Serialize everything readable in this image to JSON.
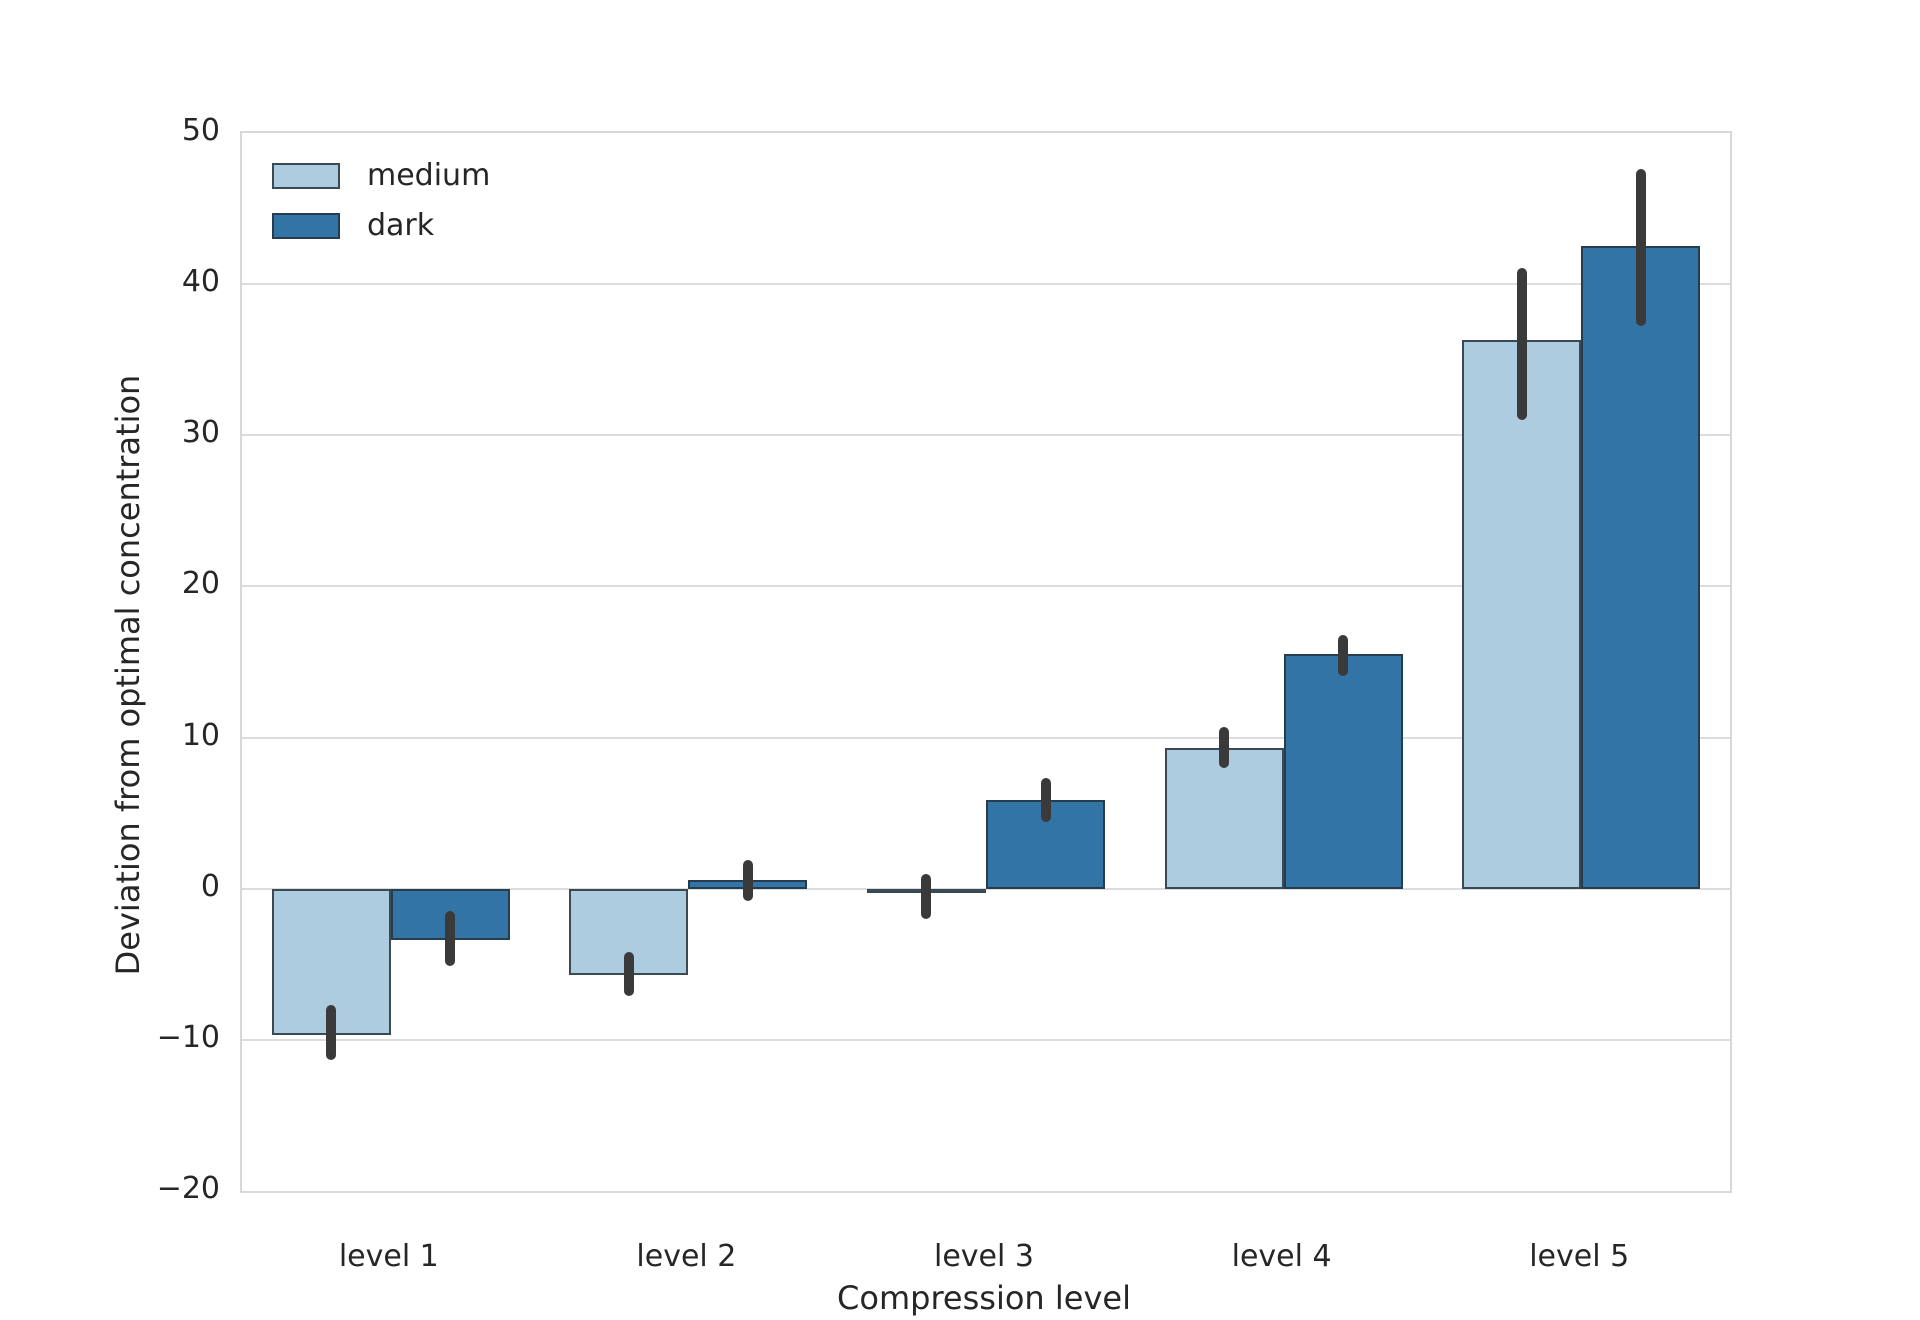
{
  "chart_data": {
    "type": "bar",
    "title": "",
    "xlabel": "Compression level",
    "ylabel": "Deviation from optimal concentration",
    "categories": [
      "level 1",
      "level 2",
      "level 3",
      "level 4",
      "level 5"
    ],
    "series": [
      {
        "name": "medium",
        "color": "#adccdf",
        "values": [
          -9.7,
          -5.7,
          -0.3,
          9.3,
          36.3
        ],
        "ci_low": [
          -11.3,
          -7.1,
          -2.0,
          8.0,
          31.0
        ],
        "ci_high": [
          -7.7,
          -4.2,
          1.0,
          10.7,
          41.1
        ]
      },
      {
        "name": "dark",
        "color": "#3374a6",
        "values": [
          -3.4,
          0.6,
          5.9,
          15.5,
          42.5
        ],
        "ci_low": [
          -5.1,
          -0.8,
          4.4,
          14.1,
          37.2
        ],
        "ci_high": [
          -1.5,
          1.9,
          7.3,
          16.8,
          47.6
        ]
      }
    ],
    "ylim": [
      -20,
      50
    ],
    "yticks": [
      -20,
      -10,
      0,
      10,
      20,
      30,
      40,
      50
    ],
    "grid": "horizontal",
    "legend_position": "upper-left",
    "style": {
      "grid_color": "#dcdcdc",
      "spine_color": "#d8d8d8",
      "error_bar_color": "#3a3a3a",
      "bar_edge_color": "rgba(38,50,60,0.85)",
      "text_color": "#262626",
      "background": "#ffffff"
    }
  },
  "legend": {
    "items": [
      {
        "label": "medium",
        "color": "#adccdf"
      },
      {
        "label": "dark",
        "color": "#3374a6"
      }
    ]
  }
}
